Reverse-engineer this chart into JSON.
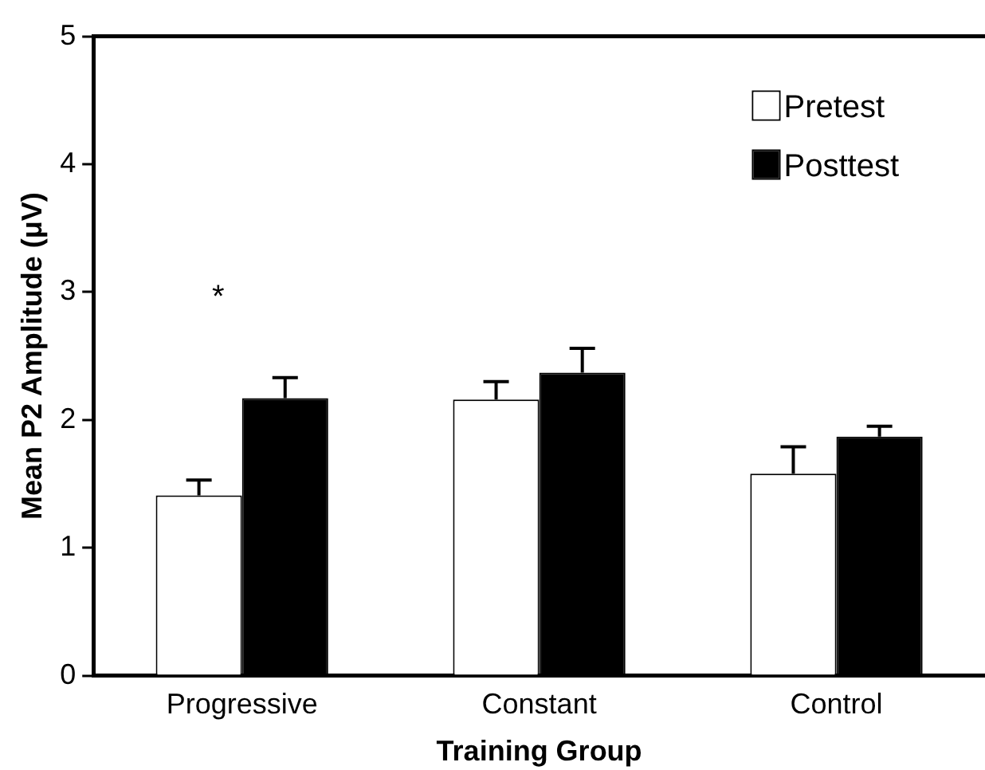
{
  "chart_data": {
    "type": "bar",
    "xlabel": "Training Group",
    "ylabel": "Mean P2 Amplitude (μV)",
    "categories": [
      "Progressive",
      "Constant",
      "Control"
    ],
    "series": [
      {
        "name": "Pretest",
        "color": "#ffffff",
        "values": [
          1.41,
          2.16,
          1.58
        ],
        "errors": [
          [
            1.41,
            1.53
          ],
          [
            2.16,
            2.3
          ],
          [
            1.58,
            1.79
          ]
        ]
      },
      {
        "name": "Posttest",
        "color": "#000000",
        "values": [
          2.17,
          2.37,
          1.87
        ],
        "errors": [
          [
            2.17,
            2.33
          ],
          [
            2.37,
            2.56
          ],
          [
            1.87,
            1.95
          ]
        ]
      }
    ],
    "ylim": [
      0,
      5
    ],
    "yticks": [
      0,
      1,
      2,
      3,
      4,
      5
    ],
    "grid": false,
    "legend": "top right",
    "annotations": [
      "*"
    ]
  }
}
